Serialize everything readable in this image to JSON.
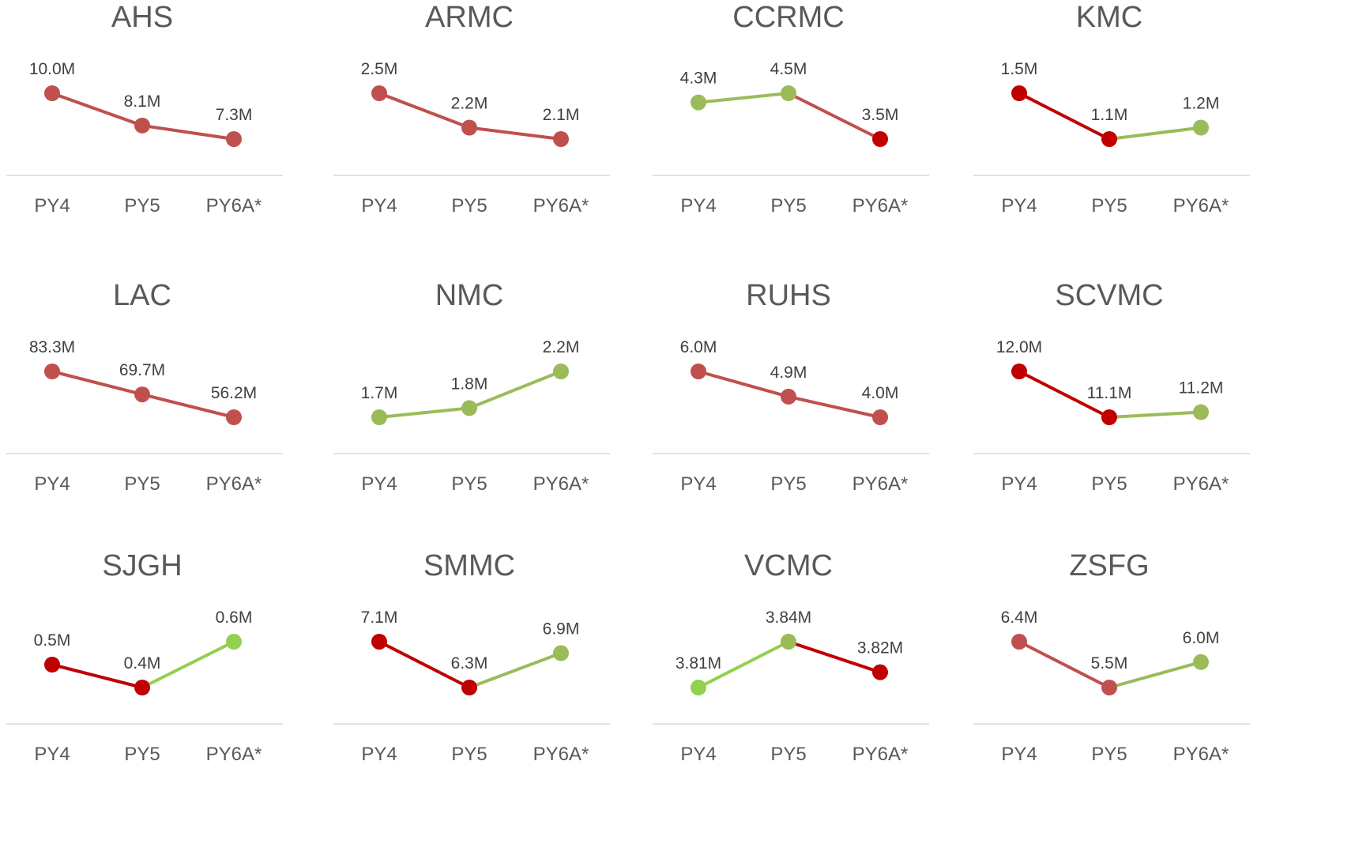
{
  "colors": {
    "decrease": "#c0504d",
    "decrease_strong": "#c00000",
    "increase": "#9bbb59",
    "axis": "#d9d9d9",
    "text": "#595959",
    "label": "#404040"
  },
  "chart_data": [
    {
      "type": "line",
      "title": "AHS",
      "categories": [
        "PY4",
        "PY5",
        "PY6A*"
      ],
      "values": [
        10.0,
        8.1,
        7.3
      ],
      "labels": [
        "10.0M",
        "8.1M",
        "7.3M"
      ],
      "point_colors": [
        "#c0504d",
        "#c0504d",
        "#c0504d"
      ],
      "segment_colors": [
        "#c0504d",
        "#c0504d"
      ]
    },
    {
      "type": "line",
      "title": "ARMC",
      "categories": [
        "PY4",
        "PY5",
        "PY6A*"
      ],
      "values": [
        2.5,
        2.2,
        2.1
      ],
      "labels": [
        "2.5M",
        "2.2M",
        "2.1M"
      ],
      "point_colors": [
        "#c0504d",
        "#c0504d",
        "#c0504d"
      ],
      "segment_colors": [
        "#c0504d",
        "#c0504d"
      ]
    },
    {
      "type": "line",
      "title": "CCRMC",
      "categories": [
        "PY4",
        "PY5",
        "PY6A*"
      ],
      "values": [
        4.3,
        4.5,
        3.5
      ],
      "labels": [
        "4.3M",
        "4.5M",
        "3.5M"
      ],
      "point_colors": [
        "#9bbb59",
        "#9bbb59",
        "#c00000"
      ],
      "segment_colors": [
        "#9bbb59",
        "#c0504d"
      ]
    },
    {
      "type": "line",
      "title": "KMC",
      "categories": [
        "PY4",
        "PY5",
        "PY6A*"
      ],
      "values": [
        1.5,
        1.1,
        1.2
      ],
      "labels": [
        "1.5M",
        "1.1M",
        "1.2M"
      ],
      "point_colors": [
        "#c00000",
        "#c00000",
        "#9bbb59"
      ],
      "segment_colors": [
        "#c00000",
        "#9bbb59"
      ]
    },
    {
      "type": "line",
      "title": "LAC",
      "categories": [
        "PY4",
        "PY5",
        "PY6A*"
      ],
      "values": [
        83.3,
        69.7,
        56.2
      ],
      "labels": [
        "83.3M",
        "69.7M",
        "56.2M"
      ],
      "point_colors": [
        "#c0504d",
        "#c0504d",
        "#c0504d"
      ],
      "segment_colors": [
        "#c0504d",
        "#c0504d"
      ]
    },
    {
      "type": "line",
      "title": "NMC",
      "categories": [
        "PY4",
        "PY5",
        "PY6A*"
      ],
      "values": [
        1.7,
        1.8,
        2.2
      ],
      "labels": [
        "1.7M",
        "1.8M",
        "2.2M"
      ],
      "point_colors": [
        "#9bbb59",
        "#9bbb59",
        "#9bbb59"
      ],
      "segment_colors": [
        "#9bbb59",
        "#9bbb59"
      ]
    },
    {
      "type": "line",
      "title": "RUHS",
      "categories": [
        "PY4",
        "PY5",
        "PY6A*"
      ],
      "values": [
        6.0,
        4.9,
        4.0
      ],
      "labels": [
        "6.0M",
        "4.9M",
        "4.0M"
      ],
      "point_colors": [
        "#c0504d",
        "#c0504d",
        "#c0504d"
      ],
      "segment_colors": [
        "#c0504d",
        "#c0504d"
      ]
    },
    {
      "type": "line",
      "title": "SCVMC",
      "categories": [
        "PY4",
        "PY5",
        "PY6A*"
      ],
      "values": [
        12.0,
        11.1,
        11.2
      ],
      "labels": [
        "12.0M",
        "11.1M",
        "11.2M"
      ],
      "point_colors": [
        "#c00000",
        "#c00000",
        "#9bbb59"
      ],
      "segment_colors": [
        "#c00000",
        "#9bbb59"
      ]
    },
    {
      "type": "line",
      "title": "SJGH",
      "categories": [
        "PY4",
        "PY5",
        "PY6A*"
      ],
      "values": [
        0.5,
        0.4,
        0.6
      ],
      "labels": [
        "0.5M",
        "0.4M",
        "0.6M"
      ],
      "point_colors": [
        "#c00000",
        "#c00000",
        "#92d050"
      ],
      "segment_colors": [
        "#c00000",
        "#92d050"
      ]
    },
    {
      "type": "line",
      "title": "SMMC",
      "categories": [
        "PY4",
        "PY5",
        "PY6A*"
      ],
      "values": [
        7.1,
        6.3,
        6.9
      ],
      "labels": [
        "7.1M",
        "6.3M",
        "6.9M"
      ],
      "point_colors": [
        "#c00000",
        "#c00000",
        "#9bbb59"
      ],
      "segment_colors": [
        "#c00000",
        "#9bbb59"
      ]
    },
    {
      "type": "line",
      "title": "VCMC",
      "categories": [
        "PY4",
        "PY5",
        "PY6A*"
      ],
      "values": [
        3.81,
        3.84,
        3.82
      ],
      "labels": [
        "3.81M",
        "3.84M",
        "3.82M"
      ],
      "point_colors": [
        "#92d050",
        "#9bbb59",
        "#c00000"
      ],
      "segment_colors": [
        "#92d050",
        "#c00000"
      ]
    },
    {
      "type": "line",
      "title": "ZSFG",
      "categories": [
        "PY4",
        "PY5",
        "PY6A*"
      ],
      "values": [
        6.4,
        5.5,
        6.0
      ],
      "labels": [
        "6.4M",
        "5.5M",
        "6.0M"
      ],
      "point_colors": [
        "#c0504d",
        "#c0504d",
        "#9bbb59"
      ],
      "segment_colors": [
        "#c0504d",
        "#9bbb59"
      ]
    }
  ]
}
